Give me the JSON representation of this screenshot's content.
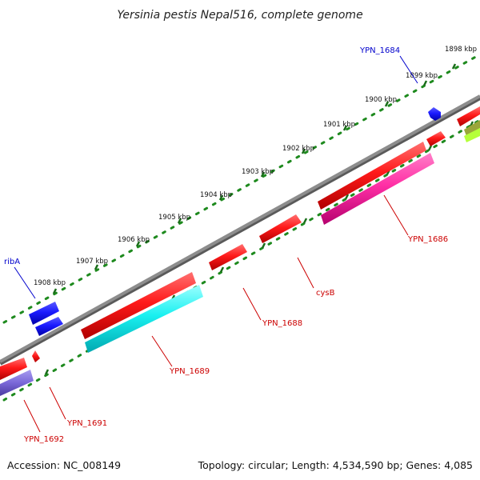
{
  "title": "Yersinia pestis Nepal516, complete genome",
  "footer": {
    "accession": "Accession: NC_008149",
    "summary": "Topology: circular; Length: 4,534,590 bp; Genes: 4,085"
  },
  "colors": {
    "backbone": "#808080",
    "ruler_dots": "#1e8a1e",
    "label_red": "#cc0000",
    "label_blue": "#0000cc"
  },
  "ruler_labels": [
    "1898 kbp",
    "1899 kbp",
    "1900 kbp",
    "1901 kbp",
    "1902 kbp",
    "1903 kbp",
    "1904 kbp",
    "1905 kbp",
    "1906 kbp",
    "1907 kbp",
    "1908 kbp"
  ],
  "gene_labels": {
    "ypn_1684": "YPN_1684",
    "ypn_1686": "YPN_1686",
    "cysb": "cysB",
    "ypn_1688": "YPN_1688",
    "ypn_1689": "YPN_1689",
    "ypn_1691": "YPN_1691",
    "ypn_1692": "YPN_1692",
    "riba": "ribA"
  }
}
